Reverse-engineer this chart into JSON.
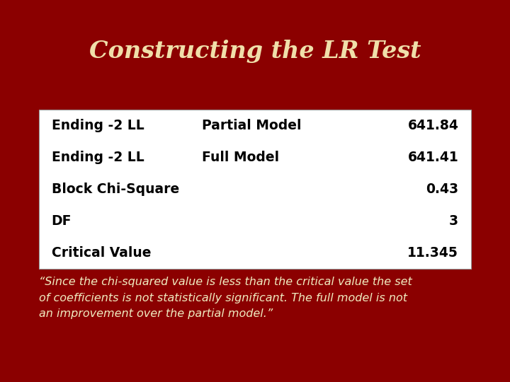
{
  "title": "Constructing the LR Test",
  "title_color": "#F0DFAA",
  "title_fontsize": 24,
  "bg_color": "#8B0000",
  "table_bg": "#FFFFFF",
  "table_rows": [
    [
      "Ending -2 LL",
      "Partial Model",
      "641.84"
    ],
    [
      "Ending -2 LL",
      "Full Model",
      "641.41"
    ],
    [
      "Block Chi-Square",
      "",
      "0.43"
    ],
    [
      "DF",
      "",
      "3"
    ],
    [
      "Critical Value",
      "",
      "11.345"
    ]
  ],
  "table_font_size": 13.5,
  "quote_text": "“Since the chi-squared value is less than the critical value the set\nof coefficients is not statistically significant. The full model is not\nan improvement over the partial model.”",
  "quote_color": "#F0ECC0",
  "quote_fontsize": 11.5
}
